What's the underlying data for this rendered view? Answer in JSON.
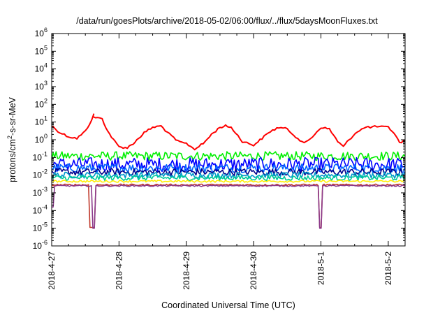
{
  "chart_data": {
    "type": "line",
    "title": "/data/run/goesPlots/archive/2018-05-02/06:00/flux/../flux/5daysMoonFluxes.txt",
    "xlabel": "Coordinated Universal Time (UTC)",
    "ylabel": "protons/cm2-s-sr-MeV",
    "yscale": "log",
    "ylim": [
      1e-06,
      1000000.0
    ],
    "y_tick_exponents": [
      -6,
      -5,
      -4,
      -3,
      -2,
      -1,
      0,
      1,
      2,
      3,
      4,
      5,
      6
    ],
    "xlim": [
      "2018-04-27T00:00",
      "2018-05-02T06:00"
    ],
    "x_ticks": [
      "2018-4-27",
      "2018-4-28",
      "2018-4-29",
      "2018-4-30",
      "2018-5-1",
      "2018-5-2"
    ],
    "grid": false,
    "legend": "none",
    "series": [
      {
        "color": "#ff0000",
        "x": [
          "2018-04-27T00:00",
          "2018-04-27T03:00",
          "2018-04-27T06:00",
          "2018-04-27T09:00",
          "2018-04-27T12:00",
          "2018-04-27T13:30",
          "2018-04-27T15:00",
          "2018-04-27T14:45",
          "2018-04-27T18:00",
          "2018-04-27T20:00",
          "2018-04-27T22:00",
          "2018-04-28T00:00",
          "2018-04-28T03:00",
          "2018-04-28T05:00",
          "2018-04-28T07:00",
          "2018-04-28T09:00",
          "2018-04-28T12:00",
          "2018-04-28T15:00",
          "2018-04-28T18:00",
          "2018-04-28T21:00",
          "2018-04-29T00:00",
          "2018-04-29T03:00",
          "2018-04-29T06:00",
          "2018-04-29T09:00",
          "2018-04-29T12:00",
          "2018-04-29T14:00",
          "2018-04-29T16:00",
          "2018-04-29T20:00",
          "2018-04-30T00:00",
          "2018-04-30T03:00",
          "2018-04-30T06:00",
          "2018-04-30T09:00",
          "2018-04-30T12:00",
          "2018-04-30T15:00",
          "2018-04-30T18:00",
          "2018-04-30T21:00",
          "2018-05-01T00:00",
          "2018-05-01T03:00",
          "2018-05-01T06:00",
          "2018-05-01T08:00",
          "2018-05-01T10:00",
          "2018-05-01T13:00",
          "2018-05-01T16:00",
          "2018-05-01T20:00",
          "2018-05-02T00:00",
          "2018-05-02T02:00",
          "2018-05-02T04:00",
          "2018-05-02T06:00"
        ],
        "values": [
          6,
          2.5,
          1.5,
          1.2,
          3,
          8,
          25,
          20,
          15,
          3,
          1,
          0.4,
          0.35,
          0.6,
          1.2,
          2.5,
          5,
          6,
          2,
          0.8,
          0.6,
          0.3,
          0.6,
          2,
          5,
          6,
          5,
          0.8,
          0.5,
          1.2,
          3,
          5,
          4,
          1.5,
          0.6,
          1.5,
          5,
          4,
          0.8,
          0.4,
          1,
          3,
          5,
          5.5,
          5,
          2.5,
          0.7,
          0.9
        ]
      },
      {
        "color": "#00ee00",
        "base": 0.12,
        "spread": 0.5,
        "dips": []
      },
      {
        "color": "#0000ff",
        "base": 0.04,
        "spread": 0.8,
        "dips": []
      },
      {
        "color": "#0066ff",
        "base": 0.025,
        "spread": 0.5,
        "dips": []
      },
      {
        "color": "#00008b",
        "base": 0.015,
        "spread": 0.4,
        "dips": []
      },
      {
        "color": "#0099cc",
        "base": 0.01,
        "spread": 0.35,
        "dips": []
      },
      {
        "color": "#00cc99",
        "base": 0.007,
        "spread": 0.3,
        "dips": []
      },
      {
        "color": "#ffee00",
        "base": 0.0045,
        "spread": 0.12,
        "dips": []
      },
      {
        "color": "#c0392b",
        "base": 0.0028,
        "spread": 0.1,
        "dips": [
          "2018-04-27T14:00",
          "2018-04-27T14:45",
          "2018-05-01T00:00"
        ]
      },
      {
        "color": "#8b3a8b",
        "base": 0.0025,
        "spread": 0.08,
        "dips": [
          "2018-04-27T00:30",
          "2018-04-27T14:45",
          "2018-05-01T00:00"
        ]
      }
    ]
  }
}
